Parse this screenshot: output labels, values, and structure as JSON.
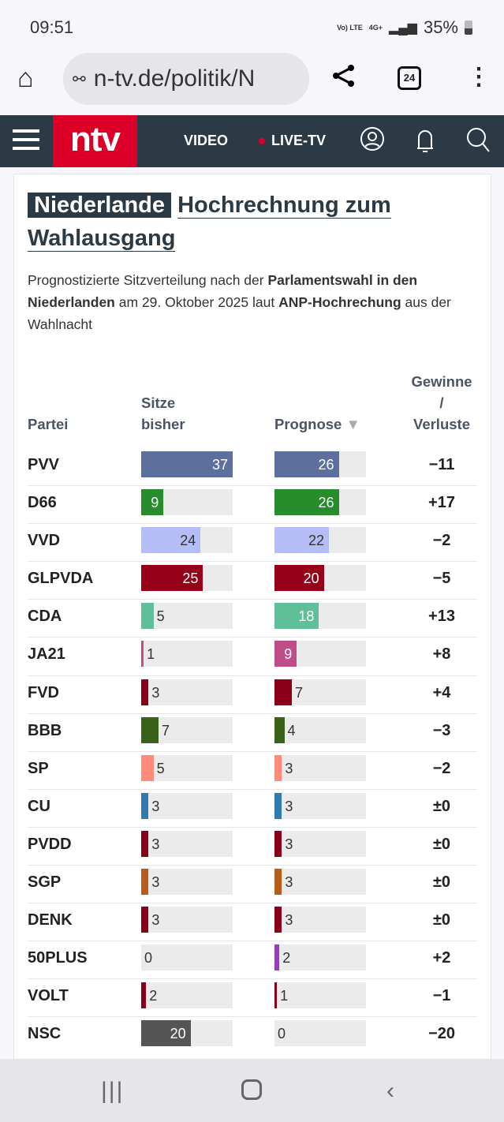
{
  "status": {
    "time": "09:51",
    "network": "Vo) LTE",
    "signal": "4G+",
    "battery": "35%"
  },
  "browser": {
    "url": "n-tv.de/politik/N",
    "tab_count": "24"
  },
  "nav": {
    "logo": "ntv",
    "video": "VIDEO",
    "live": "LIVE-TV"
  },
  "article": {
    "title_tag": "Niederlande",
    "title_rest": "Hochrechnung zum Wahlausgang",
    "desc_parts": [
      "Prognostizierte Sitzverteilung nach der ",
      "Parlamentswahl in den Niederlanden",
      " am 29. Oktober 2025 laut ",
      "ANP-Hochrechung",
      " aus der Wahlnacht"
    ]
  },
  "table": {
    "headers": {
      "party": "Partei",
      "before": "Sitze bisher",
      "forecast": "Prognose",
      "diff_1": "Gewinne",
      "diff_2": "/",
      "diff_3": "Verluste"
    },
    "sort_indicator": "▼",
    "rows": [
      {
        "party": "PVV",
        "before": 37,
        "forecast": 26,
        "diff": "−11",
        "color": "#5d6f9c"
      },
      {
        "party": "D66",
        "before": 9,
        "forecast": 26,
        "diff": "+17",
        "color": "#268c2c"
      },
      {
        "party": "VVD",
        "before": 24,
        "forecast": 22,
        "diff": "−2",
        "color": "#b4bdf5"
      },
      {
        "party": "GLPVDA",
        "before": 25,
        "forecast": 20,
        "diff": "−5",
        "color": "#960018"
      },
      {
        "party": "CDA",
        "before": 5,
        "forecast": 18,
        "diff": "+13",
        "color": "#5fbf98"
      },
      {
        "party": "JA21",
        "before": 1,
        "forecast": 9,
        "diff": "+8",
        "color": "#c04c8a"
      },
      {
        "party": "FVD",
        "before": 3,
        "forecast": 7,
        "diff": "+4",
        "color": "#8b0018"
      },
      {
        "party": "BBB",
        "before": 7,
        "forecast": 4,
        "diff": "−3",
        "color": "#38621a"
      },
      {
        "party": "SP",
        "before": 5,
        "forecast": 3,
        "diff": "−2",
        "color": "#ff8a7a"
      },
      {
        "party": "CU",
        "before": 3,
        "forecast": 3,
        "diff": "±0",
        "color": "#2f7ab0"
      },
      {
        "party": "PVDD",
        "before": 3,
        "forecast": 3,
        "diff": "±0",
        "color": "#8b0018"
      },
      {
        "party": "SGP",
        "before": 3,
        "forecast": 3,
        "diff": "±0",
        "color": "#b85c1c"
      },
      {
        "party": "DENK",
        "before": 3,
        "forecast": 3,
        "diff": "±0",
        "color": "#8b0018"
      },
      {
        "party": "50PLUS",
        "before": 0,
        "forecast": 2,
        "diff": "+2",
        "color": "#9a3cc0"
      },
      {
        "party": "VOLT",
        "before": 2,
        "forecast": 1,
        "diff": "−1",
        "color": "#8b0018"
      },
      {
        "party": "NSC",
        "before": 20,
        "forecast": 0,
        "diff": "−20",
        "color": "#555555"
      }
    ]
  }
}
